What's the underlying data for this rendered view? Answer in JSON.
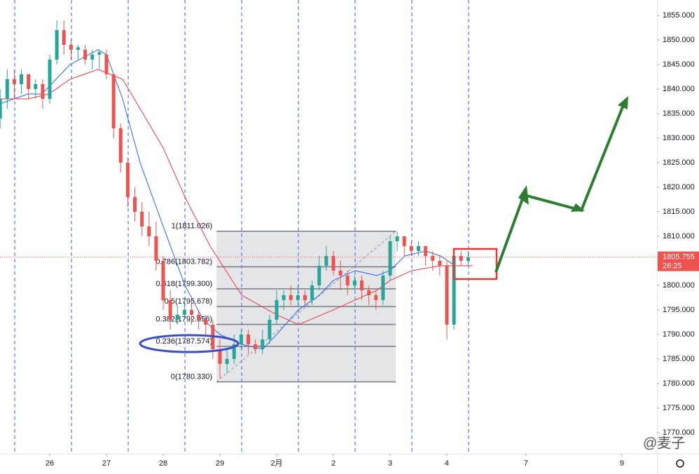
{
  "chart_data": {
    "type": "candlestick",
    "up_color": "#26a69a",
    "down_color": "#ef5350",
    "xlim": [
      -0.877,
      10.704
    ],
    "ylim": [
      1765.71,
      1858.14
    ],
    "xticks": [
      {
        "value": 0,
        "label": "26"
      },
      {
        "value": 1,
        "label": "27"
      },
      {
        "value": 2,
        "label": "28"
      },
      {
        "value": 3,
        "label": "29"
      },
      {
        "value": 4,
        "label": "2月"
      },
      {
        "value": 5,
        "label": "2"
      },
      {
        "value": 6,
        "label": "3"
      },
      {
        "value": 7,
        "label": "4"
      },
      {
        "value": 8.395,
        "label": "7"
      },
      {
        "value": 10.086,
        "label": "9"
      }
    ],
    "xgrid": [
      -0.617,
      0.383,
      1.383,
      2.383,
      3.383,
      4.383,
      5.383,
      6.383,
      7.383
    ],
    "yticks": [
      {
        "value": 1770,
        "label": "1770.000"
      },
      {
        "value": 1775,
        "label": "1775.000"
      },
      {
        "value": 1780,
        "label": "1780.000"
      },
      {
        "value": 1785,
        "label": "1785.000"
      },
      {
        "value": 1790,
        "label": "1790.000"
      },
      {
        "value": 1795,
        "label": "1795.000"
      },
      {
        "value": 1800,
        "label": "1800.000"
      },
      {
        "value": 1805,
        "label": "1805.000"
      },
      {
        "value": 1810,
        "label": "1810.000"
      },
      {
        "value": 1815,
        "label": "1815.000"
      },
      {
        "value": 1820,
        "label": "1820.000"
      },
      {
        "value": 1825,
        "label": "1825.000"
      },
      {
        "value": 1830,
        "label": "1830.000"
      },
      {
        "value": 1835,
        "label": "1835.000"
      },
      {
        "value": 1840,
        "label": "1840.000"
      },
      {
        "value": 1845,
        "label": "1845.000"
      },
      {
        "value": 1850,
        "label": "1850.000"
      },
      {
        "value": 1855,
        "label": "1855.000"
      }
    ],
    "x": [
      -0.875,
      -0.75,
      -0.625,
      -0.5,
      -0.375,
      -0.25,
      -0.125,
      0,
      0.125,
      0.25,
      0.375,
      0.5,
      0.625,
      0.75,
      0.875,
      1,
      1.125,
      1.25,
      1.375,
      1.5,
      1.625,
      1.75,
      1.875,
      2,
      2.125,
      2.25,
      2.375,
      2.5,
      2.625,
      2.75,
      2.875,
      3,
      3.125,
      3.25,
      3.375,
      3.5,
      3.625,
      3.75,
      3.875,
      4,
      4.125,
      4.25,
      4.375,
      4.5,
      4.625,
      4.75,
      4.875,
      5,
      5.125,
      5.25,
      5.375,
      5.5,
      5.625,
      5.75,
      5.875,
      6,
      6.125,
      6.25,
      6.375,
      6.5,
      6.625,
      6.75,
      6.875,
      7,
      7.125,
      7.25,
      7.375
    ],
    "open": [
      1834,
      1838,
      1842,
      1841,
      1843,
      1840,
      1841,
      1838,
      1846,
      1852,
      1849,
      1848,
      1848,
      1846,
      1847,
      1847,
      1843,
      1832,
      1825,
      1818,
      1815,
      1812,
      1810,
      1805,
      1797,
      1793,
      1794,
      1795,
      1794,
      1793,
      1792,
      1787,
      1784,
      1785,
      1788,
      1790,
      1788,
      1787,
      1789,
      1793,
      1797,
      1798,
      1797,
      1798,
      1797,
      1800,
      1804,
      1806,
      1803,
      1802,
      1800,
      1801,
      1799,
      1798,
      1797,
      1802,
      1809,
      1810,
      1808,
      1807,
      1808,
      1806,
      1805,
      1804,
      1792,
      1806,
      1805
    ],
    "high": [
      1840,
      1844,
      1844,
      1844,
      1843,
      1842,
      1842,
      1847,
      1854,
      1854,
      1850,
      1849,
      1849,
      1848,
      1848,
      1848,
      1843,
      1833,
      1826,
      1820,
      1817,
      1815,
      1813,
      1806,
      1799,
      1796,
      1797,
      1797,
      1795,
      1794,
      1793,
      1789,
      1787,
      1790,
      1791,
      1791,
      1789,
      1791,
      1794,
      1799,
      1799,
      1800,
      1800,
      1799,
      1801,
      1806,
      1808,
      1807,
      1805,
      1803,
      1802,
      1802,
      1800,
      1799,
      1803,
      1810,
      1811,
      1810,
      1809,
      1809,
      1808,
      1807,
      1806,
      1805,
      1807,
      1807,
      1807
    ],
    "low": [
      1832,
      1836,
      1838,
      1839,
      1838,
      1838,
      1836,
      1837,
      1845,
      1847,
      1846,
      1846,
      1845,
      1844,
      1844,
      1842,
      1830,
      1823,
      1816,
      1813,
      1810,
      1808,
      1803,
      1795,
      1791,
      1792,
      1793,
      1792,
      1791,
      1790,
      1785,
      1781,
      1782,
      1784,
      1787,
      1786,
      1786,
      1786,
      1788,
      1792,
      1795,
      1796,
      1796,
      1796,
      1796,
      1799,
      1803,
      1802,
      1799,
      1798,
      1799,
      1797,
      1796,
      1795,
      1796,
      1801,
      1807,
      1806,
      1806,
      1806,
      1804,
      1803,
      1802,
      1789,
      1791,
      1804,
      1804
    ],
    "close": [
      1838,
      1842,
      1841,
      1843,
      1840,
      1841,
      1838,
      1846,
      1852,
      1849,
      1848,
      1848.5,
      1846,
      1847,
      1847.5,
      1843,
      1832,
      1825,
      1818,
      1815,
      1812,
      1810,
      1805,
      1797,
      1793,
      1794,
      1795,
      1794,
      1793,
      1792,
      1787,
      1784,
      1785,
      1788,
      1790,
      1788,
      1787,
      1789,
      1793,
      1797,
      1798,
      1797,
      1798,
      1797,
      1800,
      1804,
      1806,
      1803,
      1802,
      1800,
      1801,
      1799,
      1798,
      1797,
      1802,
      1809,
      1810,
      1808,
      1807,
      1808,
      1806,
      1805,
      1804,
      1792,
      1806,
      1805,
      1805.755
    ],
    "lines": [
      {
        "color": "#2962ff",
        "x": [
          -0.877,
          -0.383,
          -0.136,
          0.358,
          0.852,
          1,
          1.284,
          1.593,
          2,
          2.383,
          2.704,
          3,
          3.383,
          3.753,
          4,
          4.383,
          4.753,
          5,
          5.383,
          5.765,
          6,
          6.259,
          6.63,
          6.889,
          7.148,
          7.457
        ],
        "values": [
          1837,
          1839,
          1839,
          1845,
          1848,
          1847,
          1838,
          1825,
          1812,
          1800,
          1793,
          1790,
          1788,
          1787,
          1790,
          1795,
          1798,
          1801,
          1803,
          1802,
          1803,
          1806,
          1807,
          1806,
          1804,
          1804
        ]
      },
      {
        "color": "#f23645",
        "x": [
          -0.877,
          -0.383,
          -0.012,
          0.358,
          0.852,
          1.284,
          1.593,
          2,
          2.383,
          2.827,
          3.383,
          4,
          4.383,
          5,
          5.383,
          5.765,
          6,
          6.383,
          6.889,
          7.457
        ],
        "values": [
          1838,
          1838,
          1839,
          1842,
          1844,
          1842,
          1836,
          1828,
          1818,
          1808,
          1798,
          1794,
          1792,
          1795,
          1797,
          1799,
          1801,
          1803,
          1804,
          1804
        ]
      }
    ],
    "fib": {
      "x": [
        2.94,
        6.1
      ],
      "levels": [
        {
          "value": 1811.026,
          "label": "1(1811.026)"
        },
        {
          "value": 1803.782,
          "label": "0.786(1803.782)"
        },
        {
          "value": 1799.3,
          "label": "0.618(1799.300)"
        },
        {
          "value": 1795.678,
          "label": "0.5(1795.678)"
        },
        {
          "value": 1792.056,
          "label": "0.382(1792.056)"
        },
        {
          "value": 1787.574,
          "label": "0.236(1787.574)"
        },
        {
          "value": 1780.33,
          "label": "0(1780.330)"
        }
      ]
    },
    "last_price": 1805.755,
    "countdown": "26:25",
    "watermark": "@麦子"
  }
}
